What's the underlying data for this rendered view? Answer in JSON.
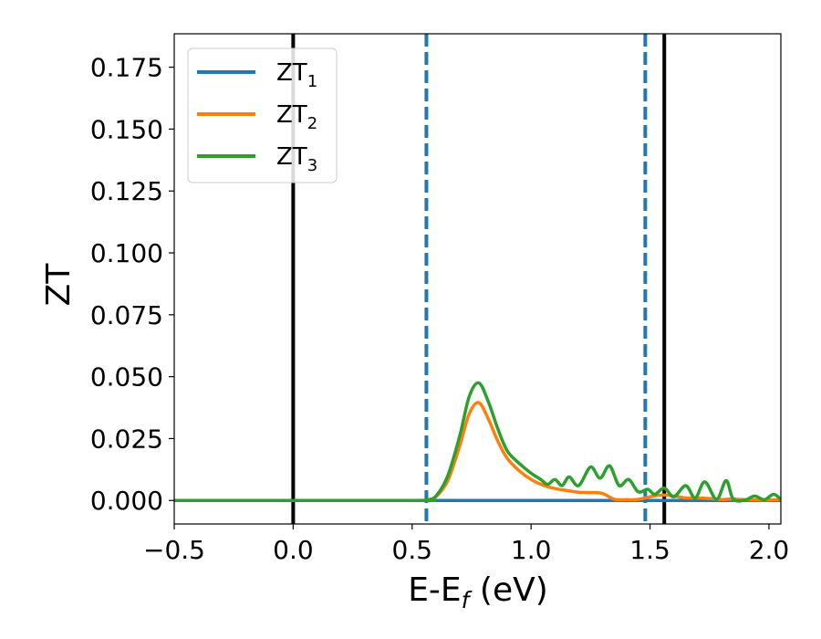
{
  "chart_data": {
    "type": "line",
    "title": "",
    "xlabel": "E-E",
    "xlabel_sub": "f",
    "xlabel_unit": " (eV)",
    "ylabel": "ZT",
    "xlim": [
      -0.5,
      2.05
    ],
    "ylim": [
      -0.0095,
      0.1885
    ],
    "xticks": [
      -0.5,
      0.0,
      0.5,
      1.0,
      1.5,
      2.0
    ],
    "xtick_labels": [
      "−0.5",
      "0.0",
      "0.5",
      "1.0",
      "1.5",
      "2.0"
    ],
    "yticks": [
      0.0,
      0.025,
      0.05,
      0.075,
      0.1,
      0.125,
      0.15,
      0.175
    ],
    "ytick_labels": [
      "0.000",
      "0.025",
      "0.050",
      "0.075",
      "0.100",
      "0.125",
      "0.150",
      "0.175"
    ],
    "grid": false,
    "legend_position": "top-left",
    "vlines": [
      {
        "x": 0.0,
        "color": "#000000",
        "style": "solid"
      },
      {
        "x": 1.56,
        "color": "#000000",
        "style": "solid"
      },
      {
        "x": 0.56,
        "color": "#1f77b4",
        "style": "dashed"
      },
      {
        "x": 1.48,
        "color": "#1f77b4",
        "style": "dashed"
      }
    ],
    "series": [
      {
        "name": "ZT",
        "name_sub": "1",
        "color": "#1f77b4",
        "x": [
          -0.5,
          0.6,
          1.0,
          1.5,
          2.05
        ],
        "y": [
          0,
          0,
          0,
          0,
          0
        ]
      },
      {
        "name": "ZT",
        "name_sub": "2",
        "color": "#ff7f0e",
        "x": [
          -0.5,
          0.5,
          0.56,
          0.6,
          0.65,
          0.7,
          0.74,
          0.78,
          0.82,
          0.86,
          0.9,
          0.95,
          1.0,
          1.05,
          1.1,
          1.15,
          1.2,
          1.25,
          1.3,
          1.35,
          1.4,
          1.45,
          1.5,
          1.55,
          1.6,
          1.65,
          1.7,
          1.75,
          1.8,
          1.85,
          1.9,
          2.0,
          2.05
        ],
        "y": [
          0,
          0,
          0.0002,
          0.0015,
          0.008,
          0.022,
          0.035,
          0.0395,
          0.033,
          0.024,
          0.017,
          0.012,
          0.0085,
          0.0062,
          0.0048,
          0.004,
          0.0033,
          0.0032,
          0.0028,
          0.0005,
          0.0003,
          0.0004,
          0.0015,
          0.0022,
          0.0018,
          0.001,
          0.001,
          0.0008,
          0.0004,
          0.0006,
          0.0003,
          0.0002,
          0.0003
        ]
      },
      {
        "name": "ZT",
        "name_sub": "3",
        "color": "#2ca02c",
        "x": [
          -0.5,
          0.5,
          0.56,
          0.6,
          0.65,
          0.7,
          0.74,
          0.78,
          0.82,
          0.86,
          0.9,
          0.95,
          1.0,
          1.04,
          1.07,
          1.1,
          1.13,
          1.16,
          1.2,
          1.25,
          1.29,
          1.33,
          1.37,
          1.41,
          1.45,
          1.49,
          1.52,
          1.56,
          1.6,
          1.65,
          1.69,
          1.73,
          1.78,
          1.82,
          1.85,
          1.9,
          1.94,
          1.98,
          2.02,
          2.05
        ],
        "y": [
          0,
          0,
          0.0002,
          0.0018,
          0.01,
          0.026,
          0.042,
          0.0475,
          0.04,
          0.029,
          0.02,
          0.015,
          0.011,
          0.0085,
          0.0065,
          0.0085,
          0.006,
          0.0095,
          0.006,
          0.0135,
          0.009,
          0.014,
          0.006,
          0.0085,
          0.0035,
          0.0045,
          0.0025,
          0.005,
          0.0015,
          0.006,
          0.001,
          0.0075,
          0.0005,
          0.008,
          0.0005,
          0.0002,
          0.0018,
          0.0003,
          0.0025,
          0.0003
        ]
      }
    ]
  }
}
